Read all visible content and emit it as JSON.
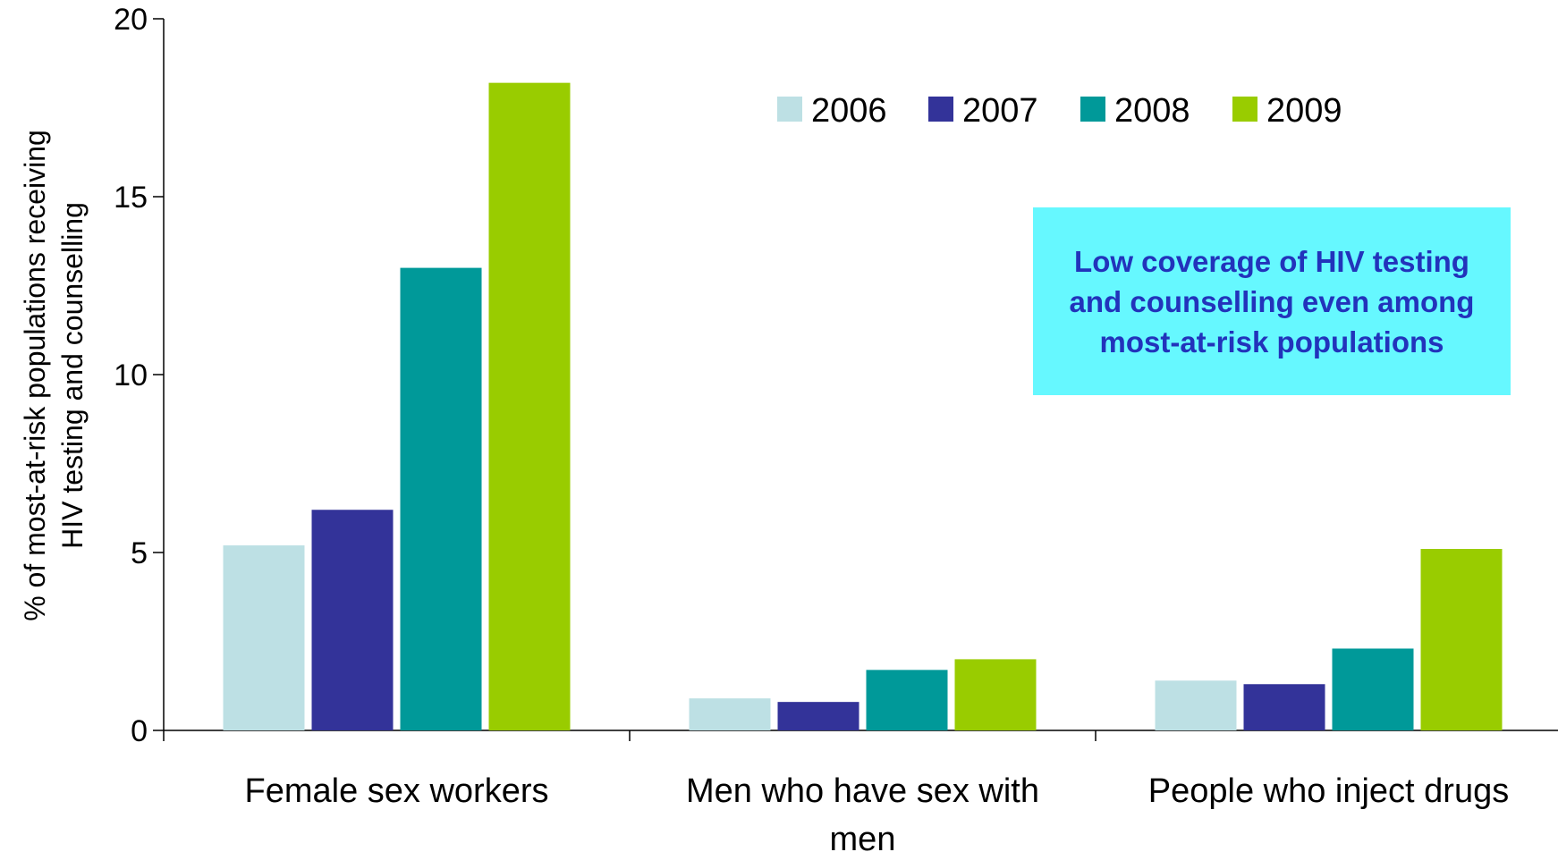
{
  "chart_data": {
    "type": "bar",
    "title": "",
    "xlabel": "",
    "ylabel_lines": [
      "% of most-at-risk populations receiving",
      "HIV testing and counselling"
    ],
    "categories": [
      "Female sex workers",
      "Men who have sex with men",
      "People who inject drugs"
    ],
    "category_label_lines": [
      [
        "Female sex workers"
      ],
      [
        "Men who have sex with",
        "men"
      ],
      [
        "People who inject drugs"
      ]
    ],
    "series": [
      {
        "name": "2006",
        "color": "#bde0e4",
        "values": [
          5.2,
          0.9,
          1.4
        ]
      },
      {
        "name": "2007",
        "color": "#333399",
        "values": [
          6.2,
          0.8,
          1.3
        ]
      },
      {
        "name": "2008",
        "color": "#009999",
        "values": [
          13.0,
          1.7,
          2.3
        ]
      },
      {
        "name": "2009",
        "color": "#99cc00",
        "values": [
          18.2,
          2.0,
          5.1
        ]
      }
    ],
    "ylim": [
      0,
      20
    ],
    "yticks": [
      0,
      5,
      10,
      15,
      20
    ],
    "grid": false,
    "legend": "top, horizontal",
    "annotation": {
      "text": "Low coverage of HIV testing and counselling even among most-at-risk populations",
      "background": "#66f8ff",
      "color": "#2233bb"
    }
  }
}
